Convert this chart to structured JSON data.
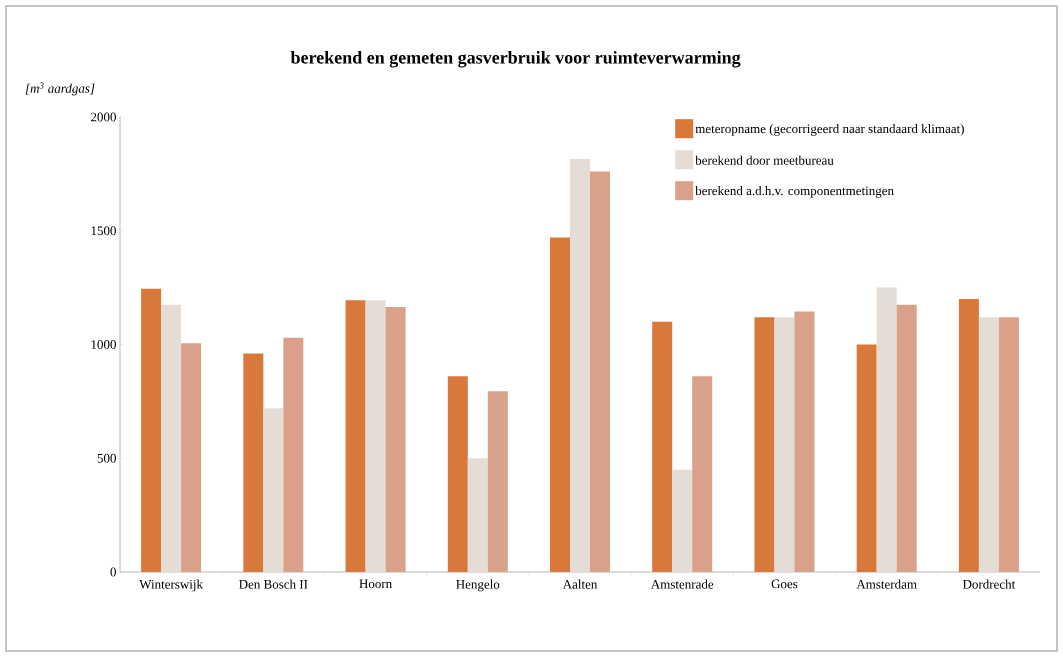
{
  "chart_data": {
    "type": "bar",
    "title": "berekend en gemeten gasverbruik voor ruimteverwarming",
    "ylabel": "[m$^{3}$ aardgas]",
    "categories": [
      "Winterswijk",
      "Den Bosch II",
      "Hoorn",
      "Hengelo",
      "Aalten",
      "Amstenrade",
      "Goes",
      "Amsterdam",
      "Dordrecht"
    ],
    "series": [
      {
        "name": "meteropname (gecorrigeerd naar standaard klimaat)",
        "color": "#d8783a",
        "values": [
          1245,
          960,
          1195,
          860,
          1470,
          1100,
          1120,
          1000,
          1200
        ]
      },
      {
        "name": "berekend door meetbureau",
        "color": "#e6dcd6",
        "values": [
          1175,
          720,
          1195,
          500,
          1815,
          450,
          1120,
          1250,
          1120
        ]
      },
      {
        "name": "berekend a.d.h.v. componentmetingen",
        "color": "#d9a08a",
        "values": [
          1005,
          1030,
          1165,
          795,
          1760,
          860,
          1145,
          1175,
          1120
        ]
      }
    ],
    "ylim": [
      0,
      2000
    ],
    "yticks": [
      0,
      500,
      1000,
      1500,
      2000
    ],
    "grid": false,
    "legend": "top right"
  }
}
